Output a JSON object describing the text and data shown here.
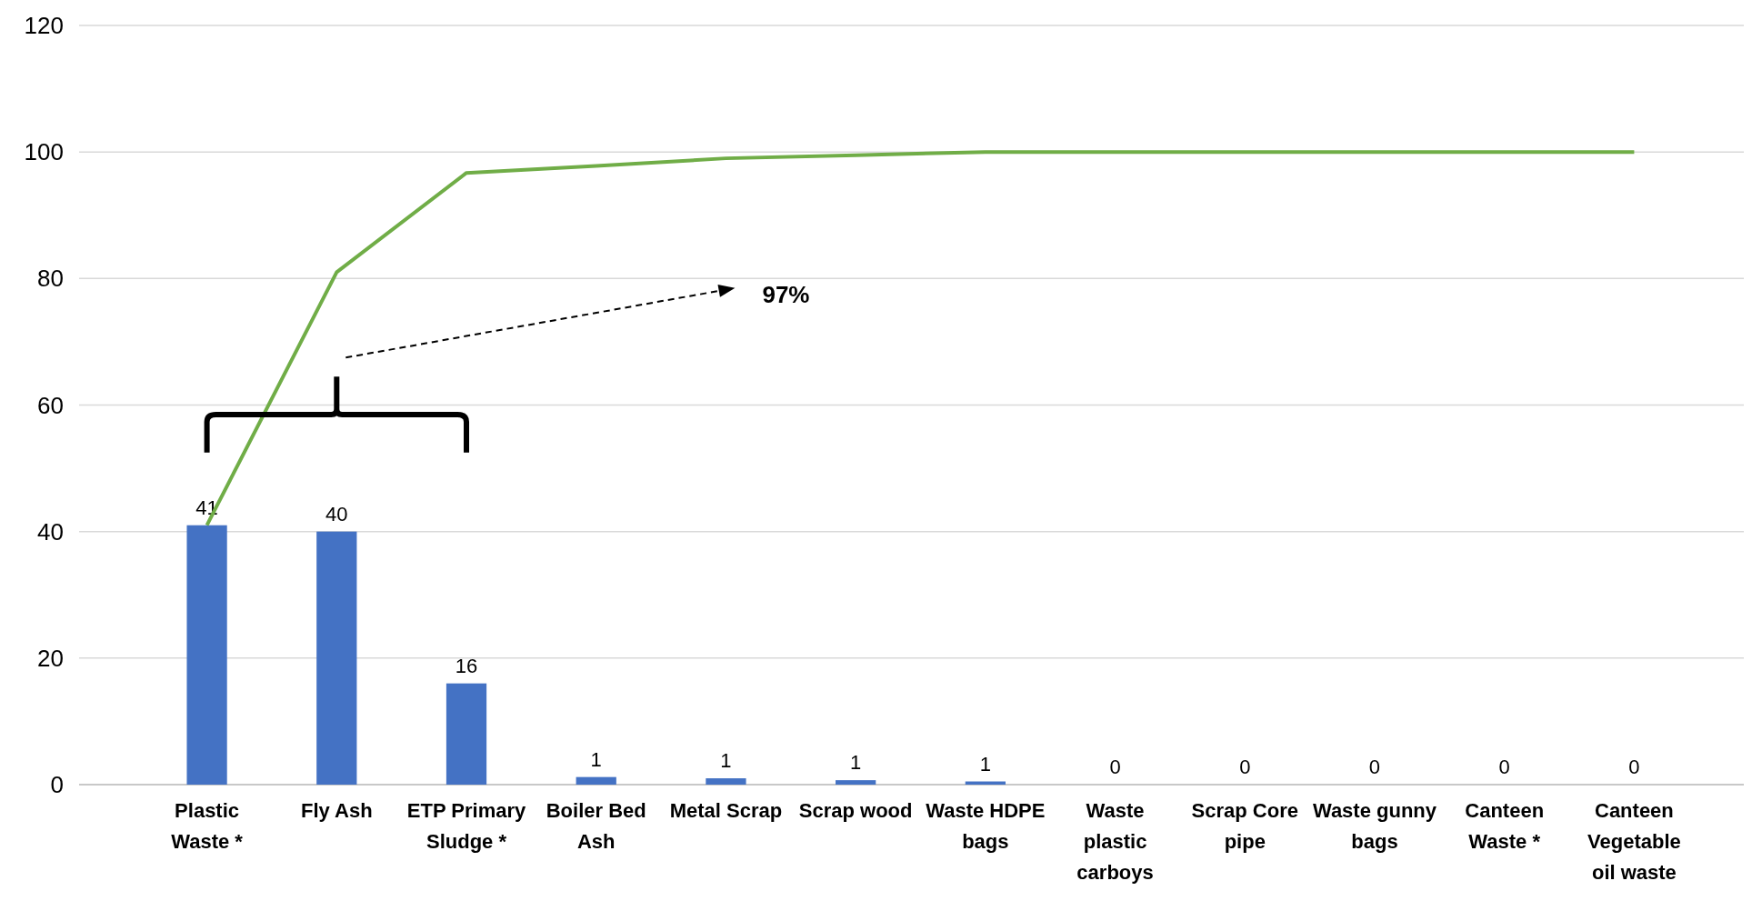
{
  "chart_data": {
    "type": "bar",
    "categories": [
      "Plastic Waste *",
      "Fly Ash",
      "ETP Primary Sludge *",
      "Boiler Bed Ash",
      "Metal Scrap",
      "Scrap wood",
      "Waste HDPE bags",
      "Waste plastic carboys",
      "Scrap Core pipe",
      "Waste gunny bags",
      "Canteen Waste *",
      "Canteen Vegetable oil waste"
    ],
    "series": [
      {
        "color": "#4472c4",
        "values": [
          41,
          40,
          16,
          1.2,
          1,
          0.7,
          0.5,
          0,
          0,
          0,
          0,
          0
        ],
        "value_labels": [
          "41",
          "40",
          "16",
          "1",
          "1",
          "1",
          "1",
          "0",
          "0",
          "0",
          "0",
          "0"
        ]
      },
      {
        "type": "line",
        "color": "#70ad47",
        "values": [
          41,
          81,
          96.7,
          97.8,
          99,
          99.5,
          100,
          100,
          100,
          100,
          100,
          100
        ]
      }
    ],
    "ylim": [
      0,
      120
    ],
    "yticks": [
      0,
      20,
      40,
      60,
      80,
      100,
      120
    ],
    "grid": "y",
    "marker": "none",
    "line_style": "solid",
    "annotations": [
      "97%"
    ]
  }
}
